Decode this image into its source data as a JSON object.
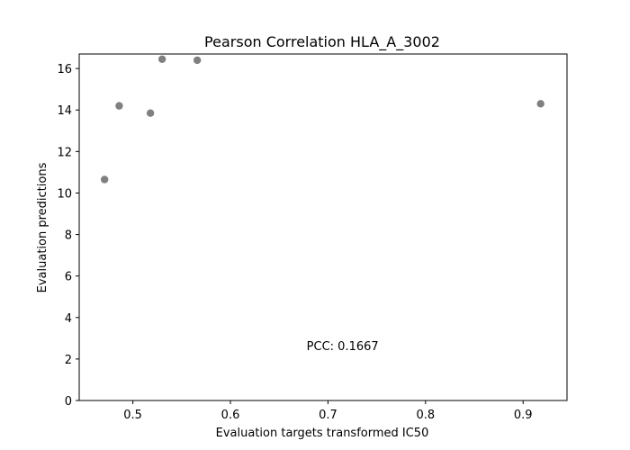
{
  "chart_data": {
    "type": "scatter",
    "title": "Pearson Correlation HLA_A_3002",
    "xlabel": "Evaluation targets transformed IC50",
    "ylabel": "Evaluation predictions",
    "xlim": [
      0.445,
      0.945
    ],
    "ylim": [
      0,
      16.7
    ],
    "xticks": [
      0.5,
      0.6,
      0.7,
      0.8,
      0.9
    ],
    "xtick_labels": [
      "0.5",
      "0.6",
      "0.7",
      "0.8",
      "0.9"
    ],
    "yticks": [
      0,
      2,
      4,
      6,
      8,
      10,
      12,
      14,
      16
    ],
    "ytick_labels": [
      "0",
      "2",
      "4",
      "6",
      "8",
      "10",
      "12",
      "14",
      "16"
    ],
    "grid": false,
    "marker_color": "#808080",
    "points": [
      {
        "x": 0.471,
        "y": 10.65
      },
      {
        "x": 0.486,
        "y": 14.2
      },
      {
        "x": 0.518,
        "y": 13.85
      },
      {
        "x": 0.53,
        "y": 16.45
      },
      {
        "x": 0.566,
        "y": 16.4
      },
      {
        "x": 0.918,
        "y": 14.3
      }
    ],
    "annotations": [
      {
        "text": "PCC: 0.1667",
        "x": 0.715,
        "y": 2.6
      }
    ]
  }
}
